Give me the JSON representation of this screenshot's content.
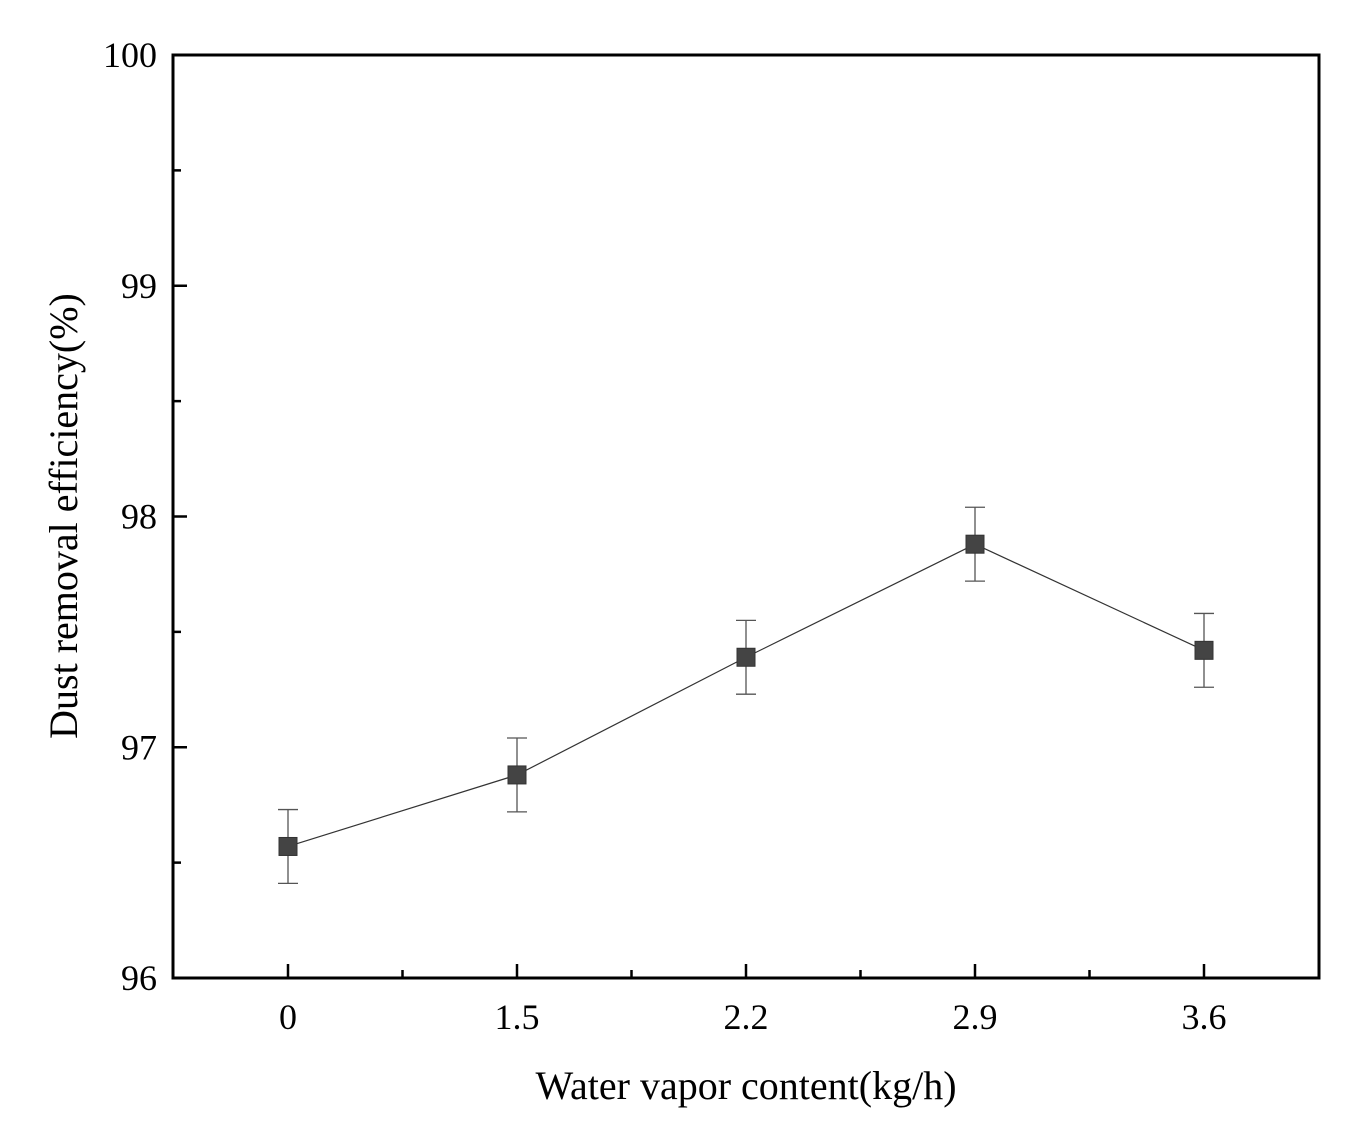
{
  "chart_data": {
    "type": "line",
    "title": "",
    "xlabel": "Water vapor content(kg/h)",
    "ylabel": "Dust removal efficiency(%)",
    "categories": [
      "0",
      "1.5",
      "2.2",
      "2.9",
      "3.6"
    ],
    "series": [
      {
        "values": [
          96.57,
          96.88,
          97.39,
          97.88,
          97.42
        ],
        "error": [
          0.16,
          0.16,
          0.16,
          0.16,
          0.16
        ],
        "marker": "square",
        "color": "#444444"
      }
    ],
    "ylim": [
      96,
      100
    ],
    "yticks": [
      96,
      97,
      98,
      99,
      100
    ],
    "ytick_labels": [
      "96",
      "97",
      "98",
      "99",
      "100"
    ],
    "y_minor_ticks": true,
    "x_minor_ticks": true,
    "grid": false,
    "legend": "none"
  }
}
